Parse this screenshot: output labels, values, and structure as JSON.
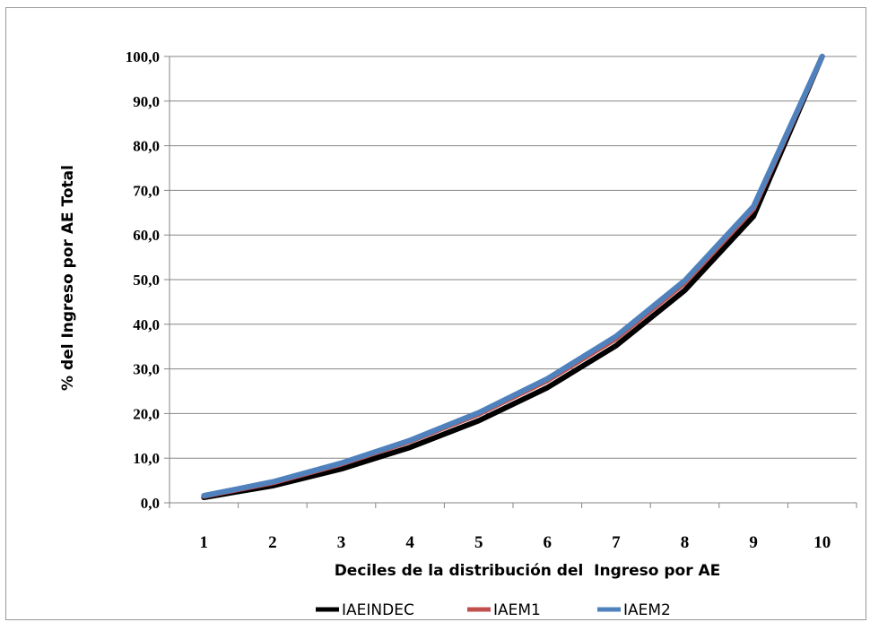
{
  "chart_data": {
    "type": "line",
    "title": "",
    "xlabel": "Deciles de la distribución del  Ingreso por AE",
    "ylabel": "% del Ingreso por AE Total",
    "categories": [
      "1",
      "2",
      "3",
      "4",
      "5",
      "6",
      "7",
      "8",
      "9",
      "10"
    ],
    "y_ticks": [
      "0,0",
      "10,0",
      "20,0",
      "30,0",
      "40,0",
      "50,0",
      "60,0",
      "70,0",
      "80,0",
      "90,0",
      "100,0"
    ],
    "ylim": [
      0,
      100
    ],
    "grid": true,
    "legend_position": "bottom",
    "series": [
      {
        "name": "IAEINDEC",
        "color": "#000000",
        "values": [
          1.2,
          3.8,
          7.6,
          12.4,
          18.4,
          25.8,
          35.2,
          47.6,
          64.2,
          100.0
        ]
      },
      {
        "name": "IAEM1",
        "color": "#c0504d",
        "values": [
          1.5,
          4.5,
          8.7,
          13.8,
          19.9,
          27.4,
          36.8,
          49.3,
          65.9,
          100.0
        ]
      },
      {
        "name": "IAEM2",
        "color": "#4f81bd",
        "values": [
          1.6,
          4.7,
          8.9,
          14.0,
          20.2,
          27.8,
          37.3,
          49.8,
          66.4,
          100.0
        ]
      }
    ]
  }
}
